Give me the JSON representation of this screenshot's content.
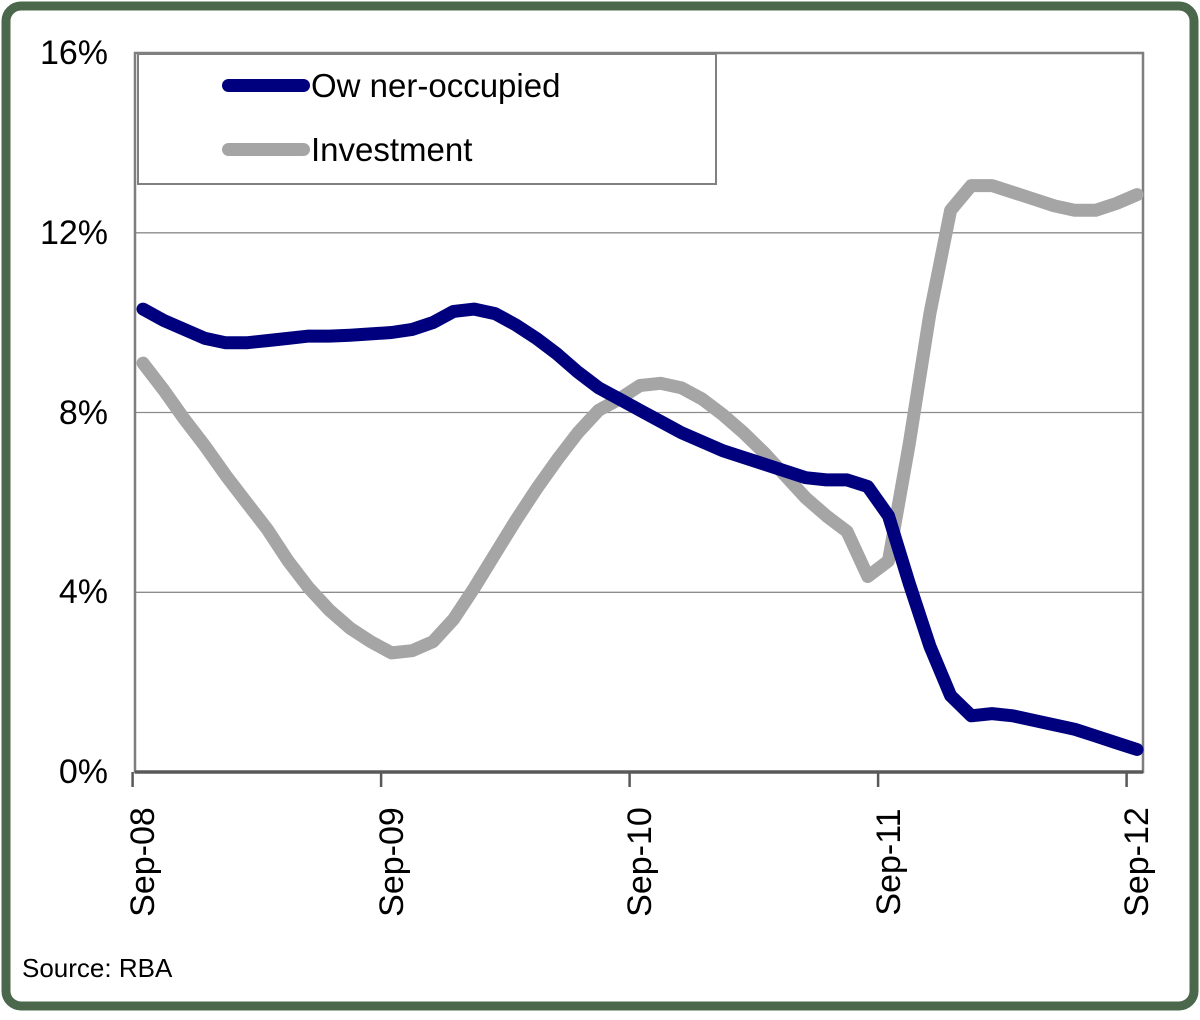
{
  "chart_data": {
    "type": "line",
    "title": "",
    "xlabel": "",
    "ylabel": "",
    "ylim": [
      0,
      16
    ],
    "grid": "horizontal",
    "legend_position": "top-left",
    "y_tick_values": [
      0,
      4,
      8,
      12,
      16
    ],
    "y_tick_labels": [
      "0%",
      "4%",
      "8%",
      "12%",
      "16%"
    ],
    "x_tick_month_indices": [
      0,
      12,
      24,
      36,
      48
    ],
    "x_tick_labels": [
      "Sep-08",
      "Sep-09",
      "Sep-10",
      "Sep-11",
      "Sep-12"
    ],
    "x": [
      "Sep-08",
      "Oct-08",
      "Nov-08",
      "Dec-08",
      "Jan-09",
      "Feb-09",
      "Mar-09",
      "Apr-09",
      "May-09",
      "Jun-09",
      "Jul-09",
      "Aug-09",
      "Sep-09",
      "Oct-09",
      "Nov-09",
      "Dec-09",
      "Jan-10",
      "Feb-10",
      "Mar-10",
      "Apr-10",
      "May-10",
      "Jun-10",
      "Jul-10",
      "Aug-10",
      "Sep-10",
      "Oct-10",
      "Nov-10",
      "Dec-10",
      "Jan-11",
      "Feb-11",
      "Mar-11",
      "Apr-11",
      "May-11",
      "Jun-11",
      "Jul-11",
      "Aug-11",
      "Sep-11",
      "Oct-11",
      "Nov-11",
      "Dec-11",
      "Jan-12",
      "Feb-12",
      "Mar-12",
      "Apr-12",
      "May-12",
      "Jun-12",
      "Jul-12",
      "Aug-12",
      "Sep-12"
    ],
    "series": [
      {
        "name": "Ow ner-occupied",
        "color": "#00007F",
        "values": [
          10.3,
          10.05,
          9.85,
          9.65,
          9.55,
          9.55,
          9.6,
          9.65,
          9.7,
          9.7,
          9.72,
          9.75,
          9.78,
          9.85,
          10.0,
          10.25,
          10.3,
          10.2,
          9.95,
          9.65,
          9.3,
          8.9,
          8.55,
          8.3,
          8.05,
          7.8,
          7.55,
          7.35,
          7.15,
          7.0,
          6.85,
          6.7,
          6.55,
          6.5,
          6.5,
          6.35,
          5.7,
          4.2,
          2.8,
          1.7,
          1.25,
          1.3,
          1.25,
          1.15,
          1.05,
          0.95,
          0.8,
          0.65,
          0.5
        ]
      },
      {
        "name": "Investment",
        "color": "#A5A5A5",
        "values": [
          9.1,
          8.5,
          7.85,
          7.25,
          6.6,
          6.0,
          5.4,
          4.7,
          4.1,
          3.6,
          3.2,
          2.9,
          2.65,
          2.7,
          2.9,
          3.4,
          4.1,
          4.85,
          5.6,
          6.3,
          6.95,
          7.55,
          8.05,
          8.3,
          8.6,
          8.65,
          8.55,
          8.3,
          7.95,
          7.55,
          7.1,
          6.6,
          6.1,
          5.7,
          5.35,
          4.35,
          4.7,
          7.3,
          10.2,
          12.5,
          13.05,
          13.05,
          12.9,
          12.75,
          12.6,
          12.5,
          12.5,
          12.65,
          12.85
        ]
      }
    ],
    "source_note": "Source: RBA"
  },
  "colors": {
    "outer_border_green": "#4c684c",
    "plot_frame_gray": "#7f7f7f",
    "gridline_gray": "#8c8c8c",
    "bottom_axis_gray": "#595959",
    "owner_occupied_navy": "#00007F",
    "investment_gray": "#A5A5A5"
  }
}
